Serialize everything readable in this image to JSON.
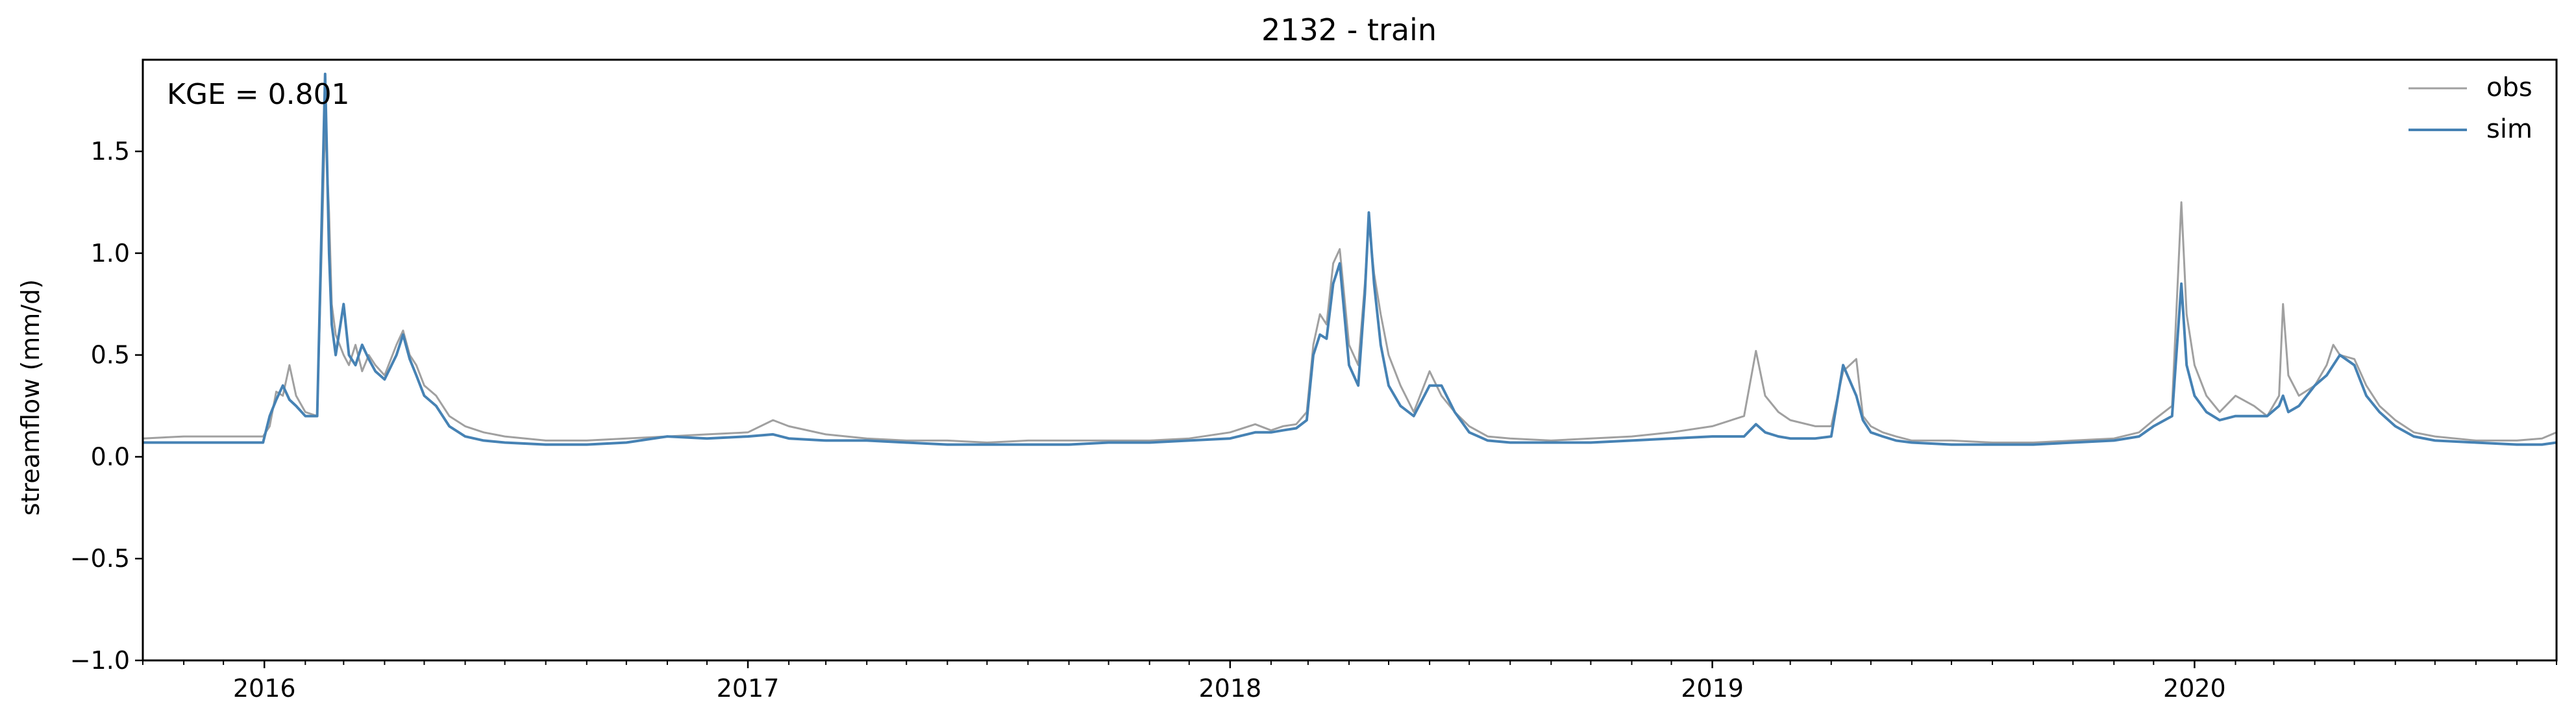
{
  "chart_data": {
    "type": "line",
    "title": "2132 - train",
    "xlabel": "",
    "ylabel": "streamflow (mm/d)",
    "annotation": "KGE = 0.801",
    "xlim": [
      "2015-10-01",
      "2020-10-01"
    ],
    "ylim": [
      -1.0,
      1.95
    ],
    "x_ticks": [
      "2016",
      "2017",
      "2018",
      "2019",
      "2020"
    ],
    "y_ticks": [
      "−1.0",
      "−0.5",
      "0.0",
      "0.5",
      "1.0",
      "1.5"
    ],
    "grid": false,
    "legend_position": "top-right",
    "series": [
      {
        "name": "obs",
        "color": "#a0a0a0",
        "x": [
          "2015-10-01",
          "2015-11-01",
          "2015-12-01",
          "2015-12-31",
          "2016-01-05",
          "2016-01-10",
          "2016-01-15",
          "2016-01-20",
          "2016-01-25",
          "2016-02-01",
          "2016-02-10",
          "2016-02-16",
          "2016-02-19",
          "2016-02-21",
          "2016-02-24",
          "2016-03-01",
          "2016-03-05",
          "2016-03-10",
          "2016-03-15",
          "2016-03-20",
          "2016-03-25",
          "2016-04-01",
          "2016-04-10",
          "2016-04-15",
          "2016-04-20",
          "2016-04-25",
          "2016-05-01",
          "2016-05-10",
          "2016-05-20",
          "2016-06-01",
          "2016-06-15",
          "2016-07-01",
          "2016-08-01",
          "2016-09-01",
          "2016-10-01",
          "2016-11-01",
          "2016-12-01",
          "2017-01-01",
          "2017-01-20",
          "2017-02-01",
          "2017-03-01",
          "2017-04-01",
          "2017-05-01",
          "2017-06-01",
          "2017-07-01",
          "2017-08-01",
          "2017-09-01",
          "2017-10-01",
          "2017-11-01",
          "2017-12-01",
          "2018-01-01",
          "2018-01-20",
          "2018-02-01",
          "2018-02-10",
          "2018-02-20",
          "2018-02-28",
          "2018-03-05",
          "2018-03-10",
          "2018-03-15",
          "2018-03-20",
          "2018-03-25",
          "2018-04-01",
          "2018-04-08",
          "2018-04-13",
          "2018-04-16",
          "2018-04-20",
          "2018-04-25",
          "2018-05-01",
          "2018-05-10",
          "2018-05-20",
          "2018-06-01",
          "2018-06-10",
          "2018-06-20",
          "2018-07-01",
          "2018-07-15",
          "2018-08-01",
          "2018-09-01",
          "2018-10-01",
          "2018-11-01",
          "2018-12-01",
          "2019-01-01",
          "2019-01-25",
          "2019-02-03",
          "2019-02-10",
          "2019-02-20",
          "2019-03-01",
          "2019-03-20",
          "2019-04-01",
          "2019-04-10",
          "2019-04-20",
          "2019-04-25",
          "2019-05-01",
          "2019-05-10",
          "2019-05-20",
          "2019-06-01",
          "2019-07-01",
          "2019-08-01",
          "2019-09-01",
          "2019-10-01",
          "2019-11-01",
          "2019-11-20",
          "2019-12-01",
          "2019-12-15",
          "2019-12-22",
          "2019-12-26",
          "2020-01-01",
          "2020-01-10",
          "2020-01-20",
          "2020-02-01",
          "2020-02-15",
          "2020-02-25",
          "2020-03-05",
          "2020-03-08",
          "2020-03-12",
          "2020-03-20",
          "2020-04-01",
          "2020-04-10",
          "2020-04-15",
          "2020-04-20",
          "2020-05-01",
          "2020-05-10",
          "2020-05-20",
          "2020-06-01",
          "2020-06-15",
          "2020-07-01",
          "2020-08-01",
          "2020-09-01",
          "2020-09-20",
          "2020-10-01"
        ],
        "y": [
          0.09,
          0.1,
          0.1,
          0.1,
          0.15,
          0.32,
          0.3,
          0.45,
          0.3,
          0.22,
          0.2,
          1.65,
          1.2,
          0.75,
          0.6,
          0.5,
          0.45,
          0.55,
          0.42,
          0.5,
          0.45,
          0.4,
          0.55,
          0.62,
          0.5,
          0.45,
          0.35,
          0.3,
          0.2,
          0.15,
          0.12,
          0.1,
          0.08,
          0.08,
          0.09,
          0.1,
          0.11,
          0.12,
          0.18,
          0.15,
          0.11,
          0.09,
          0.08,
          0.08,
          0.07,
          0.08,
          0.08,
          0.08,
          0.08,
          0.09,
          0.12,
          0.16,
          0.13,
          0.15,
          0.16,
          0.22,
          0.55,
          0.7,
          0.65,
          0.95,
          1.02,
          0.55,
          0.45,
          0.85,
          1.15,
          0.9,
          0.7,
          0.5,
          0.35,
          0.22,
          0.42,
          0.3,
          0.22,
          0.15,
          0.1,
          0.09,
          0.08,
          0.09,
          0.1,
          0.12,
          0.15,
          0.2,
          0.52,
          0.3,
          0.22,
          0.18,
          0.15,
          0.15,
          0.42,
          0.48,
          0.2,
          0.15,
          0.12,
          0.1,
          0.08,
          0.08,
          0.07,
          0.07,
          0.08,
          0.09,
          0.12,
          0.18,
          0.25,
          1.25,
          0.7,
          0.45,
          0.3,
          0.22,
          0.3,
          0.25,
          0.2,
          0.3,
          0.75,
          0.4,
          0.3,
          0.35,
          0.45,
          0.55,
          0.5,
          0.48,
          0.35,
          0.25,
          0.18,
          0.12,
          0.1,
          0.08,
          0.08,
          0.09,
          0.12
        ]
      },
      {
        "name": "sim",
        "color": "#4682b4",
        "x": [
          "2015-10-01",
          "2015-11-01",
          "2015-12-01",
          "2015-12-31",
          "2016-01-05",
          "2016-01-10",
          "2016-01-15",
          "2016-01-20",
          "2016-01-25",
          "2016-02-01",
          "2016-02-10",
          "2016-02-16",
          "2016-02-19",
          "2016-02-21",
          "2016-02-24",
          "2016-03-01",
          "2016-03-05",
          "2016-03-10",
          "2016-03-15",
          "2016-03-20",
          "2016-03-25",
          "2016-04-01",
          "2016-04-10",
          "2016-04-15",
          "2016-04-20",
          "2016-04-25",
          "2016-05-01",
          "2016-05-10",
          "2016-05-20",
          "2016-06-01",
          "2016-06-15",
          "2016-07-01",
          "2016-08-01",
          "2016-09-01",
          "2016-10-01",
          "2016-11-01",
          "2016-12-01",
          "2017-01-01",
          "2017-01-20",
          "2017-02-01",
          "2017-03-01",
          "2017-04-01",
          "2017-05-01",
          "2017-06-01",
          "2017-07-01",
          "2017-08-01",
          "2017-09-01",
          "2017-10-01",
          "2017-11-01",
          "2017-12-01",
          "2018-01-01",
          "2018-01-20",
          "2018-02-01",
          "2018-02-10",
          "2018-02-20",
          "2018-02-28",
          "2018-03-05",
          "2018-03-10",
          "2018-03-15",
          "2018-03-20",
          "2018-03-25",
          "2018-04-01",
          "2018-04-08",
          "2018-04-13",
          "2018-04-16",
          "2018-04-20",
          "2018-04-25",
          "2018-05-01",
          "2018-05-10",
          "2018-05-20",
          "2018-06-01",
          "2018-06-10",
          "2018-06-20",
          "2018-07-01",
          "2018-07-15",
          "2018-08-01",
          "2018-09-01",
          "2018-10-01",
          "2018-11-01",
          "2018-12-01",
          "2019-01-01",
          "2019-01-25",
          "2019-02-03",
          "2019-02-10",
          "2019-02-20",
          "2019-03-01",
          "2019-03-20",
          "2019-04-01",
          "2019-04-10",
          "2019-04-20",
          "2019-04-25",
          "2019-05-01",
          "2019-05-10",
          "2019-05-20",
          "2019-06-01",
          "2019-07-01",
          "2019-08-01",
          "2019-09-01",
          "2019-10-01",
          "2019-11-01",
          "2019-11-20",
          "2019-12-01",
          "2019-12-15",
          "2019-12-22",
          "2019-12-26",
          "2020-01-01",
          "2020-01-10",
          "2020-01-20",
          "2020-02-01",
          "2020-02-15",
          "2020-02-25",
          "2020-03-05",
          "2020-03-08",
          "2020-03-12",
          "2020-03-20",
          "2020-04-01",
          "2020-04-10",
          "2020-04-15",
          "2020-04-20",
          "2020-05-01",
          "2020-05-10",
          "2020-05-20",
          "2020-06-01",
          "2020-06-15",
          "2020-07-01",
          "2020-08-01",
          "2020-09-01",
          "2020-09-20",
          "2020-10-01"
        ],
        "y": [
          0.07,
          0.07,
          0.07,
          0.07,
          0.2,
          0.28,
          0.35,
          0.28,
          0.25,
          0.2,
          0.2,
          1.88,
          1.0,
          0.65,
          0.5,
          0.75,
          0.5,
          0.45,
          0.55,
          0.48,
          0.42,
          0.38,
          0.5,
          0.6,
          0.48,
          0.4,
          0.3,
          0.25,
          0.15,
          0.1,
          0.08,
          0.07,
          0.06,
          0.06,
          0.07,
          0.1,
          0.09,
          0.1,
          0.11,
          0.09,
          0.08,
          0.08,
          0.07,
          0.06,
          0.06,
          0.06,
          0.06,
          0.07,
          0.07,
          0.08,
          0.09,
          0.12,
          0.12,
          0.13,
          0.14,
          0.18,
          0.5,
          0.6,
          0.58,
          0.85,
          0.95,
          0.45,
          0.35,
          0.8,
          1.2,
          0.85,
          0.55,
          0.35,
          0.25,
          0.2,
          0.35,
          0.35,
          0.22,
          0.12,
          0.08,
          0.07,
          0.07,
          0.07,
          0.08,
          0.09,
          0.1,
          0.1,
          0.16,
          0.12,
          0.1,
          0.09,
          0.09,
          0.1,
          0.45,
          0.3,
          0.18,
          0.12,
          0.1,
          0.08,
          0.07,
          0.06,
          0.06,
          0.06,
          0.07,
          0.08,
          0.1,
          0.15,
          0.2,
          0.85,
          0.45,
          0.3,
          0.22,
          0.18,
          0.2,
          0.2,
          0.2,
          0.25,
          0.3,
          0.22,
          0.25,
          0.35,
          0.4,
          0.45,
          0.5,
          0.45,
          0.3,
          0.22,
          0.15,
          0.1,
          0.08,
          0.07,
          0.06,
          0.06,
          0.07
        ]
      }
    ]
  }
}
